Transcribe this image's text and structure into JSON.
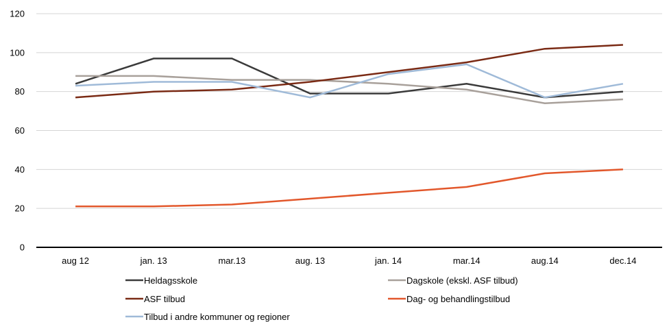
{
  "chart_data": {
    "type": "line",
    "title": "",
    "xlabel": "",
    "ylabel": "",
    "categories": [
      "aug 12",
      "jan. 13",
      "mar.13",
      "aug. 13",
      "jan. 14",
      "mar.14",
      "aug.14",
      "dec.14"
    ],
    "ylim": [
      0,
      120
    ],
    "yticks": [
      "0",
      "20",
      "40",
      "60",
      "80",
      "100",
      "120"
    ],
    "grid": "horizontal",
    "legend_position": "bottom",
    "series": [
      {
        "name": "Heldagsskole",
        "color": "#3a3a3a",
        "values": [
          84,
          97,
          97,
          79,
          79,
          84,
          77,
          80
        ]
      },
      {
        "name": "Dagskole (ekskl. ASF tilbud)",
        "color": "#a8a09a",
        "values": [
          88,
          88,
          86,
          86,
          84,
          81,
          74,
          76
        ]
      },
      {
        "name": "ASF tilbud",
        "color": "#7a2a14",
        "values": [
          77,
          80,
          81,
          85,
          90,
          95,
          102,
          104
        ]
      },
      {
        "name": "Dag- og behandlingstilbud",
        "color": "#e2572b",
        "values": [
          21,
          21,
          22,
          25,
          28,
          31,
          38,
          40
        ]
      },
      {
        "name": "Tilbud i andre kommuner og regioner",
        "color": "#9fbad8",
        "values": [
          83,
          85,
          85,
          77,
          89,
          94,
          77,
          84
        ]
      }
    ]
  }
}
